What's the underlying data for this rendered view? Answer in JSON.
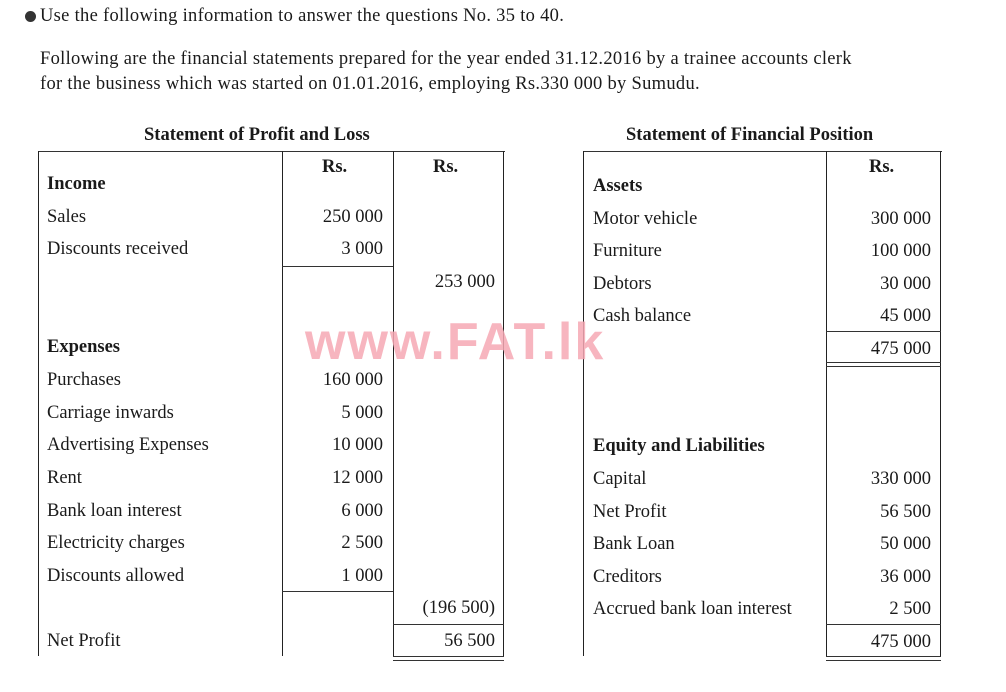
{
  "intro": {
    "bullet_icon": "filled-circle-bullet",
    "instruction": "Use the following information to answer the questions No. 35 to 40.",
    "paragraph_line1": "Following are the financial statements prepared for the year ended 31.12.2016 by a trainee accounts clerk",
    "paragraph_line2": "for the business which was started on 01.01.2016, employing Rs.330 000 by Sumudu."
  },
  "watermark": "www.FAT.lk",
  "profit_loss": {
    "title": "Statement of Profit and Loss",
    "col1_header": "Rs.",
    "col2_header": "Rs.",
    "rows": [
      {
        "label": "Income",
        "heading": true,
        "c1": "",
        "c2": ""
      },
      {
        "label": "Sales",
        "c1": "250 000",
        "c2": ""
      },
      {
        "label": "Discounts received",
        "c1": "3 000",
        "c2": ""
      },
      {
        "label": "",
        "c1": "",
        "c2": "253 000"
      },
      {
        "label": "",
        "c1": "",
        "c2": ""
      },
      {
        "label": "Expenses",
        "heading": true,
        "c1": "",
        "c2": ""
      },
      {
        "label": "Purchases",
        "c1": "160 000",
        "c2": ""
      },
      {
        "label": "Carriage inwards",
        "c1": "5 000",
        "c2": ""
      },
      {
        "label": "Advertising Expenses",
        "c1": "10 000",
        "c2": ""
      },
      {
        "label": "Rent",
        "c1": "12 000",
        "c2": ""
      },
      {
        "label": "Bank loan interest",
        "c1": "6 000",
        "c2": ""
      },
      {
        "label": "Electricity charges",
        "c1": "2 500",
        "c2": ""
      },
      {
        "label": "Discounts allowed",
        "c1": "1 000",
        "c2": ""
      },
      {
        "label": "",
        "c1": "",
        "c2": "(196 500)"
      },
      {
        "label": "Net Profit",
        "c1": "",
        "c2": "56 500"
      }
    ]
  },
  "financial_position": {
    "title": "Statement of Financial Position",
    "col_header": "Rs.",
    "rows": [
      {
        "label": "Assets",
        "heading": true,
        "c1": ""
      },
      {
        "label": "Motor vehicle",
        "c1": "300 000"
      },
      {
        "label": "Furniture",
        "c1": "100 000"
      },
      {
        "label": "Debtors",
        "c1": "30 000"
      },
      {
        "label": "Cash balance",
        "c1": "45 000"
      },
      {
        "label": "",
        "c1": "475 000"
      },
      {
        "label": "",
        "c1": ""
      },
      {
        "label": "",
        "c1": ""
      },
      {
        "label": "Equity and Liabilities",
        "heading": true,
        "c1": ""
      },
      {
        "label": "Capital",
        "c1": "330 000"
      },
      {
        "label": "Net Profit",
        "c1": "56 500"
      },
      {
        "label": "Bank Loan",
        "c1": "50 000"
      },
      {
        "label": "Creditors",
        "c1": "36 000"
      },
      {
        "label": "Accrued bank loan interest",
        "c1": "2 500"
      },
      {
        "label": "",
        "c1": "475 000"
      }
    ]
  }
}
